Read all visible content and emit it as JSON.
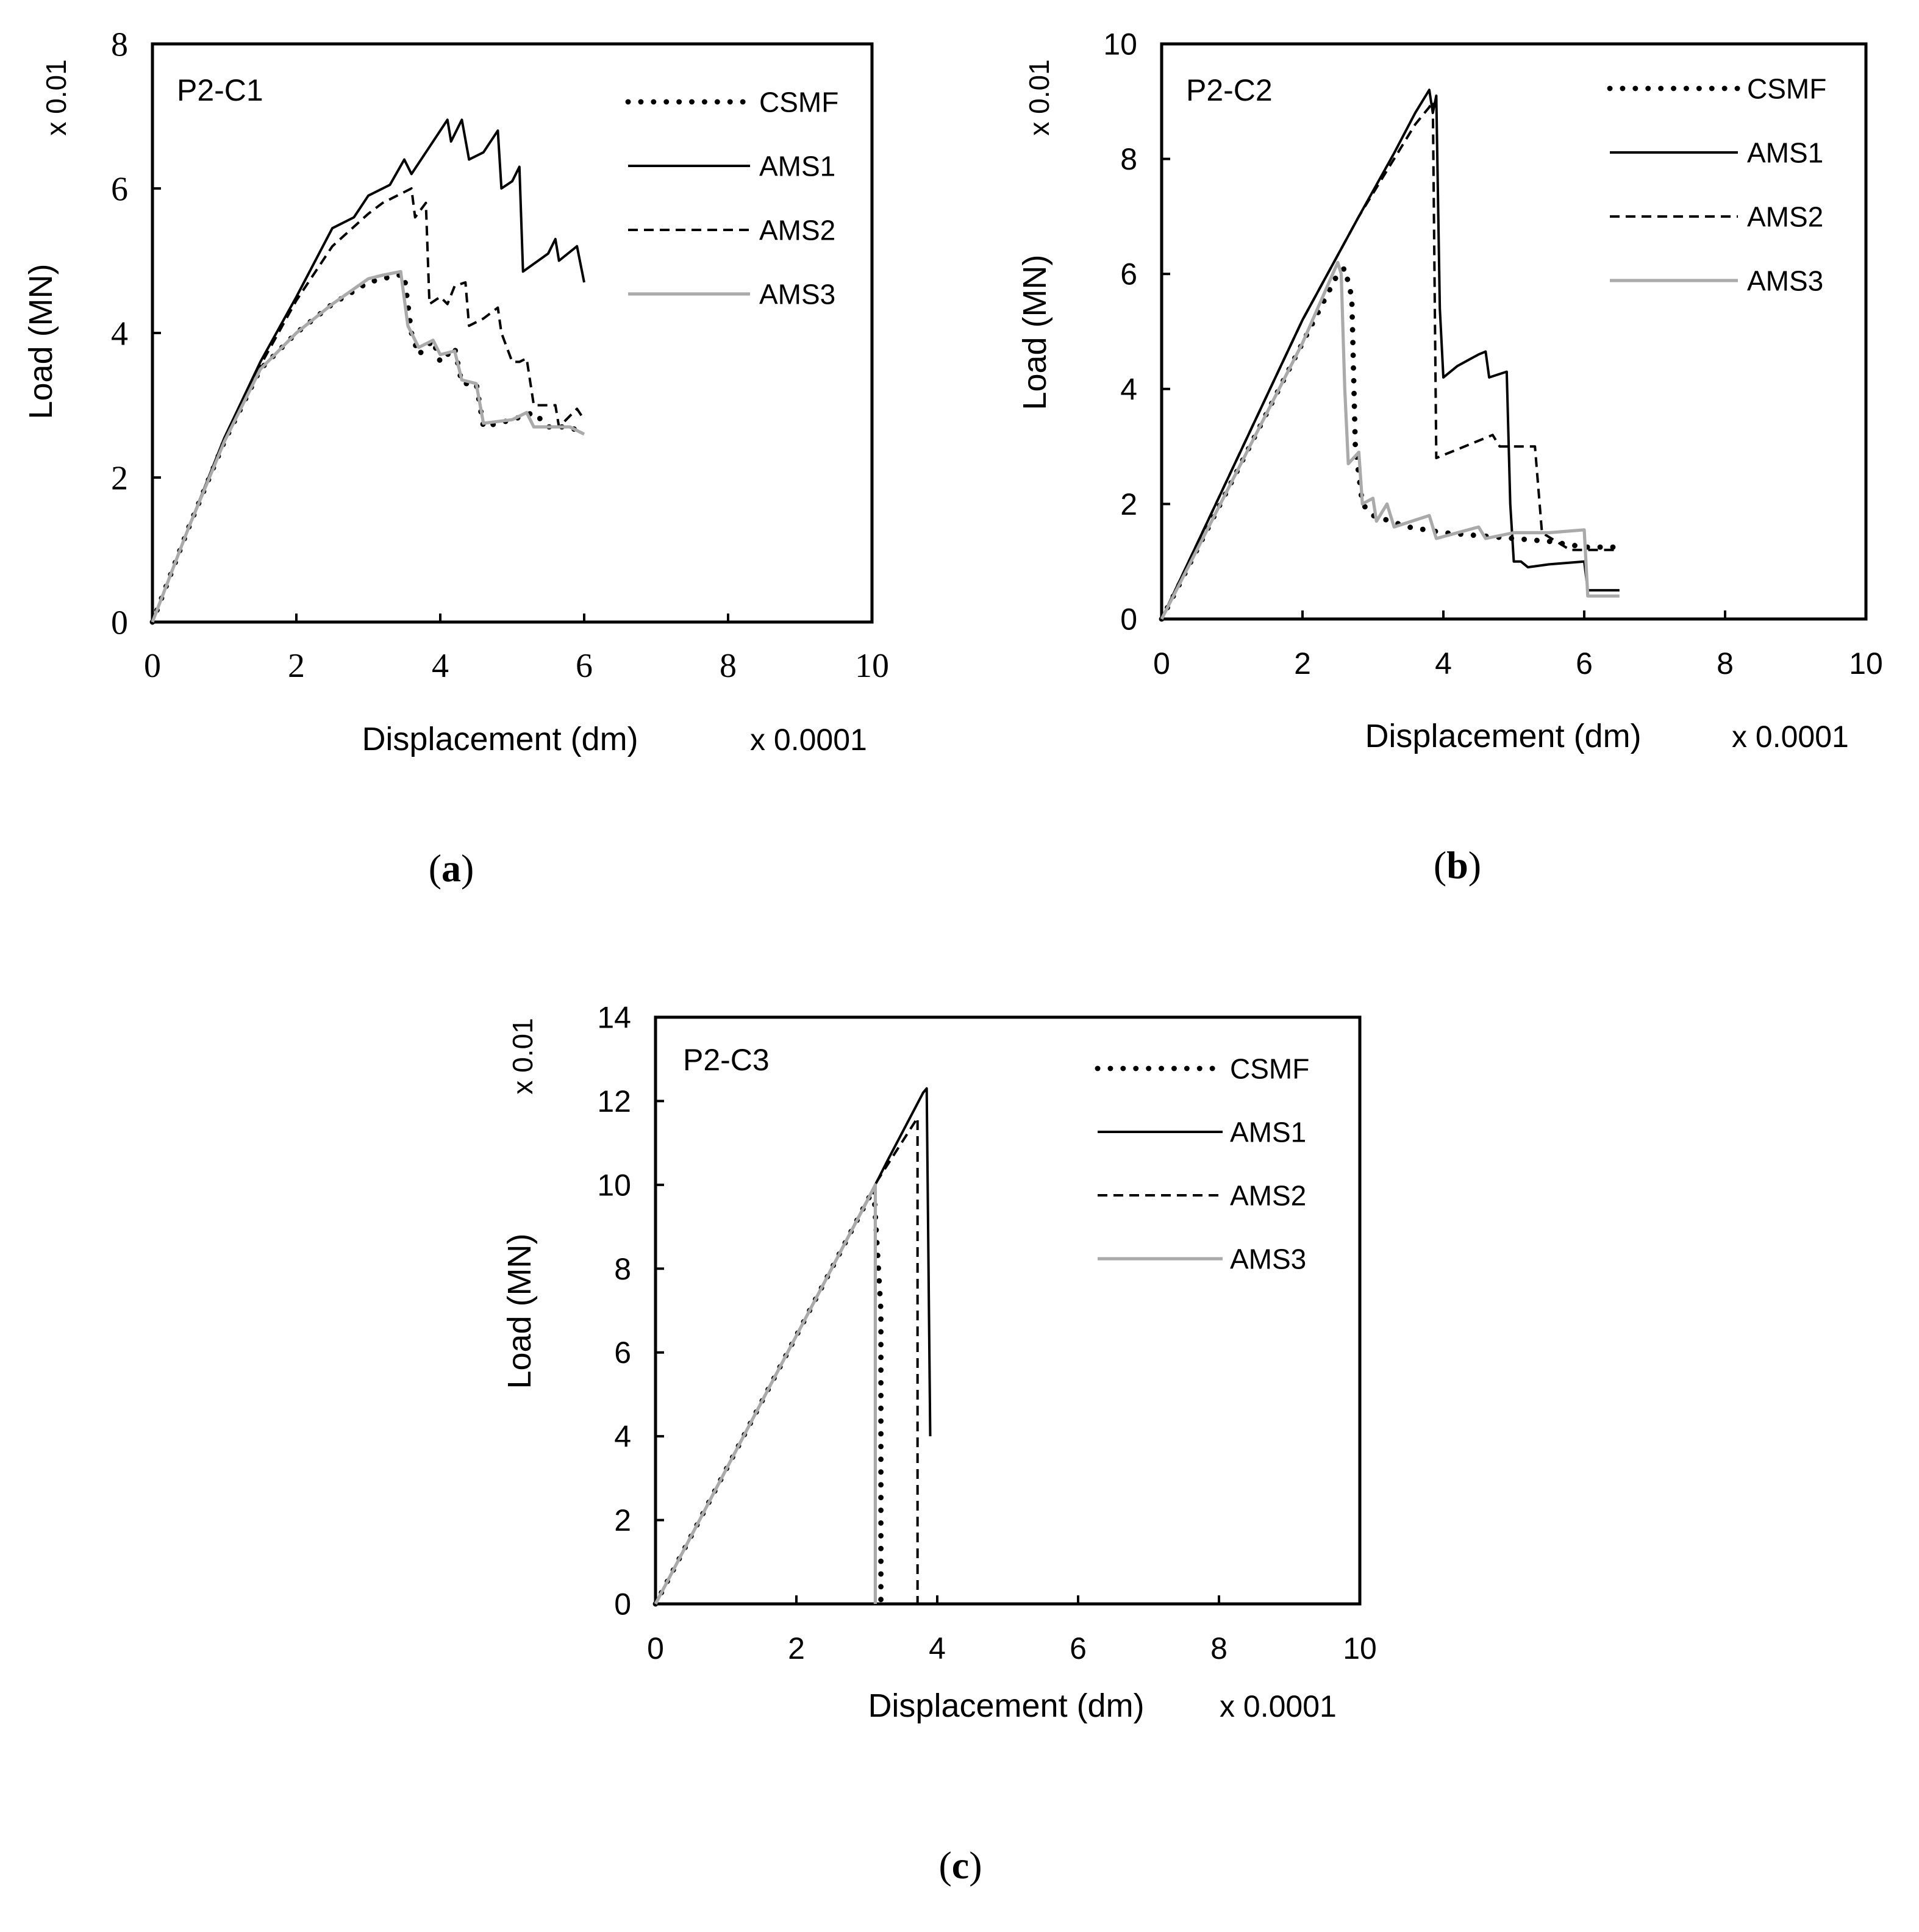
{
  "figure": {
    "panel_labels": [
      "a",
      "b",
      "c"
    ]
  },
  "chart_data": [
    {
      "type": "line",
      "panel": "a",
      "title": "P2-C1",
      "xlabel": "Displacement (dm)",
      "x_multiplier": "x 0.0001",
      "ylabel": "Load  (MN)",
      "y_multiplier": "x 0.01",
      "xlim": [
        0,
        10
      ],
      "ylim": [
        0,
        8
      ],
      "xticks": [
        "0",
        "2",
        "4",
        "6",
        "8",
        "10"
      ],
      "yticks": [
        "0",
        "2",
        "4",
        "6",
        "8"
      ],
      "legend_position": "top-right",
      "series": [
        {
          "name": "CSMF",
          "style": "dotted",
          "color": "#000000",
          "points": [
            [
              0,
              0
            ],
            [
              0.5,
              1.3
            ],
            [
              1.0,
              2.5
            ],
            [
              1.5,
              3.5
            ],
            [
              2.0,
              4.0
            ],
            [
              2.5,
              4.4
            ],
            [
              3.0,
              4.7
            ],
            [
              3.4,
              4.8
            ],
            [
              3.5,
              4.8
            ],
            [
              3.6,
              4.0
            ],
            [
              3.7,
              3.7
            ],
            [
              3.9,
              3.9
            ],
            [
              4.0,
              3.6
            ],
            [
              4.2,
              3.8
            ],
            [
              4.3,
              3.3
            ],
            [
              4.5,
              3.3
            ],
            [
              4.6,
              2.7
            ],
            [
              5.0,
              2.8
            ],
            [
              5.3,
              2.9
            ],
            [
              5.5,
              2.7
            ],
            [
              5.8,
              2.7
            ],
            [
              6.0,
              2.6
            ]
          ]
        },
        {
          "name": "AMS1",
          "style": "solid",
          "color": "#000000",
          "points": [
            [
              0,
              0
            ],
            [
              0.5,
              1.3
            ],
            [
              1.0,
              2.55
            ],
            [
              1.5,
              3.6
            ],
            [
              2.0,
              4.5
            ],
            [
              2.5,
              5.45
            ],
            [
              2.8,
              5.6
            ],
            [
              3.0,
              5.9
            ],
            [
              3.3,
              6.05
            ],
            [
              3.5,
              6.4
            ],
            [
              3.6,
              6.2
            ],
            [
              3.8,
              6.5
            ],
            [
              4.1,
              6.95
            ],
            [
              4.15,
              6.65
            ],
            [
              4.3,
              6.95
            ],
            [
              4.4,
              6.4
            ],
            [
              4.6,
              6.5
            ],
            [
              4.8,
              6.8
            ],
            [
              4.85,
              6.0
            ],
            [
              5.0,
              6.1
            ],
            [
              5.1,
              6.3
            ],
            [
              5.15,
              4.85
            ],
            [
              5.5,
              5.1
            ],
            [
              5.6,
              5.3
            ],
            [
              5.65,
              5.0
            ],
            [
              5.9,
              5.2
            ],
            [
              6.0,
              4.7
            ]
          ]
        },
        {
          "name": "AMS2",
          "style": "dashed",
          "color": "#000000",
          "points": [
            [
              0,
              0
            ],
            [
              0.5,
              1.3
            ],
            [
              1.0,
              2.5
            ],
            [
              1.5,
              3.55
            ],
            [
              2.0,
              4.45
            ],
            [
              2.5,
              5.2
            ],
            [
              3.0,
              5.65
            ],
            [
              3.2,
              5.8
            ],
            [
              3.4,
              5.9
            ],
            [
              3.6,
              6.0
            ],
            [
              3.65,
              5.6
            ],
            [
              3.8,
              5.8
            ],
            [
              3.85,
              4.4
            ],
            [
              4.0,
              4.5
            ],
            [
              4.1,
              4.4
            ],
            [
              4.2,
              4.65
            ],
            [
              4.35,
              4.7
            ],
            [
              4.4,
              4.1
            ],
            [
              4.6,
              4.2
            ],
            [
              4.8,
              4.35
            ],
            [
              4.85,
              4.0
            ],
            [
              5.0,
              3.6
            ],
            [
              5.1,
              3.6
            ],
            [
              5.2,
              3.65
            ],
            [
              5.3,
              3.0
            ],
            [
              5.5,
              3.0
            ],
            [
              5.6,
              3.0
            ],
            [
              5.65,
              2.7
            ],
            [
              5.9,
              2.95
            ],
            [
              6.0,
              2.8
            ]
          ]
        },
        {
          "name": "AMS3",
          "style": "solid",
          "color": "#aaaaaa",
          "points": [
            [
              0,
              0
            ],
            [
              0.5,
              1.3
            ],
            [
              1.0,
              2.5
            ],
            [
              1.5,
              3.5
            ],
            [
              2.0,
              4.0
            ],
            [
              2.5,
              4.4
            ],
            [
              3.0,
              4.75
            ],
            [
              3.2,
              4.8
            ],
            [
              3.45,
              4.85
            ],
            [
              3.55,
              4.1
            ],
            [
              3.7,
              3.8
            ],
            [
              3.9,
              3.9
            ],
            [
              4.0,
              3.7
            ],
            [
              4.2,
              3.75
            ],
            [
              4.3,
              3.35
            ],
            [
              4.5,
              3.3
            ],
            [
              4.6,
              2.75
            ],
            [
              5.0,
              2.8
            ],
            [
              5.2,
              2.9
            ],
            [
              5.3,
              2.7
            ],
            [
              5.8,
              2.7
            ],
            [
              6.0,
              2.6
            ]
          ]
        }
      ]
    },
    {
      "type": "line",
      "panel": "b",
      "title": "P2-C2",
      "xlabel": "Displacement (dm)",
      "x_multiplier": "x 0.0001",
      "ylabel": "Load  (MN)",
      "y_multiplier": "x 0.01",
      "xlim": [
        0,
        10
      ],
      "ylim": [
        0,
        10
      ],
      "xticks": [
        "0",
        "2",
        "4",
        "6",
        "8",
        "10"
      ],
      "yticks": [
        "0",
        "2",
        "4",
        "6",
        "8",
        "10"
      ],
      "legend_position": "top-right",
      "series": [
        {
          "name": "CSMF",
          "style": "dotted",
          "color": "#000000",
          "points": [
            [
              0,
              0
            ],
            [
              0.5,
              1.2
            ],
            [
              1.0,
              2.4
            ],
            [
              1.5,
              3.6
            ],
            [
              2.0,
              4.8
            ],
            [
              2.5,
              6.0
            ],
            [
              2.6,
              6.1
            ],
            [
              2.7,
              5.6
            ],
            [
              2.75,
              3.0
            ],
            [
              2.85,
              2.0
            ],
            [
              3.0,
              1.8
            ],
            [
              3.5,
              1.6
            ],
            [
              4.0,
              1.5
            ],
            [
              4.5,
              1.45
            ],
            [
              5.0,
              1.4
            ],
            [
              5.5,
              1.35
            ],
            [
              6.0,
              1.25
            ],
            [
              6.5,
              1.25
            ]
          ]
        },
        {
          "name": "AMS1",
          "style": "solid",
          "color": "#000000",
          "points": [
            [
              0,
              0
            ],
            [
              1.0,
              2.6
            ],
            [
              2.0,
              5.2
            ],
            [
              2.8,
              7.0
            ],
            [
              3.3,
              8.1
            ],
            [
              3.6,
              8.8
            ],
            [
              3.8,
              9.2
            ],
            [
              3.85,
              8.8
            ],
            [
              3.9,
              9.1
            ],
            [
              3.95,
              5.4
            ],
            [
              4.0,
              4.2
            ],
            [
              4.2,
              4.4
            ],
            [
              4.5,
              4.6
            ],
            [
              4.6,
              4.65
            ],
            [
              4.65,
              4.2
            ],
            [
              4.9,
              4.3
            ],
            [
              4.95,
              2.0
            ],
            [
              5.0,
              1.0
            ],
            [
              5.1,
              1.0
            ],
            [
              5.2,
              0.9
            ],
            [
              5.5,
              0.95
            ],
            [
              6.0,
              1.0
            ],
            [
              6.05,
              0.5
            ],
            [
              6.5,
              0.5
            ]
          ]
        },
        {
          "name": "AMS2",
          "style": "dashed",
          "color": "#000000",
          "points": [
            [
              0,
              0
            ],
            [
              1.0,
              2.6
            ],
            [
              2.0,
              5.2
            ],
            [
              2.8,
              7.0
            ],
            [
              3.3,
              8.0
            ],
            [
              3.6,
              8.6
            ],
            [
              3.8,
              8.9
            ],
            [
              3.85,
              9.0
            ],
            [
              3.9,
              2.8
            ],
            [
              4.3,
              3.0
            ],
            [
              4.6,
              3.15
            ],
            [
              4.7,
              3.2
            ],
            [
              4.8,
              3.0
            ],
            [
              5.3,
              3.0
            ],
            [
              5.4,
              1.5
            ],
            [
              5.8,
              1.2
            ],
            [
              6.5,
              1.2
            ]
          ]
        },
        {
          "name": "AMS3",
          "style": "solid",
          "color": "#aaaaaa",
          "points": [
            [
              0,
              0
            ],
            [
              0.5,
              1.2
            ],
            [
              1.0,
              2.4
            ],
            [
              1.5,
              3.6
            ],
            [
              2.0,
              4.8
            ],
            [
              2.5,
              6.2
            ],
            [
              2.55,
              6.0
            ],
            [
              2.6,
              4.0
            ],
            [
              2.65,
              2.7
            ],
            [
              2.8,
              2.9
            ],
            [
              2.85,
              2.0
            ],
            [
              3.0,
              2.1
            ],
            [
              3.05,
              1.7
            ],
            [
              3.2,
              2.0
            ],
            [
              3.3,
              1.6
            ],
            [
              3.8,
              1.8
            ],
            [
              3.9,
              1.4
            ],
            [
              4.5,
              1.6
            ],
            [
              4.6,
              1.4
            ],
            [
              5.0,
              1.5
            ],
            [
              5.5,
              1.5
            ],
            [
              6.0,
              1.55
            ],
            [
              6.05,
              0.4
            ],
            [
              6.5,
              0.4
            ]
          ]
        }
      ]
    },
    {
      "type": "line",
      "panel": "c",
      "title": "P2-C3",
      "xlabel": "Displacement (dm)",
      "x_multiplier": "x 0.0001",
      "ylabel": "Load  (MN)",
      "y_multiplier": "x 0.01",
      "xlim": [
        0,
        10
      ],
      "ylim": [
        0,
        14
      ],
      "xticks": [
        "0",
        "2",
        "4",
        "6",
        "8",
        "10"
      ],
      "yticks": [
        "0",
        "2",
        "4",
        "6",
        "8",
        "10",
        "12",
        "14"
      ],
      "legend_position": "top-right",
      "series": [
        {
          "name": "CSMF",
          "style": "dotted",
          "color": "#000000",
          "points": [
            [
              0,
              0
            ],
            [
              1.0,
              3.2
            ],
            [
              2.0,
              6.4
            ],
            [
              3.0,
              9.6
            ],
            [
              3.1,
              9.9
            ],
            [
              3.2,
              7.0
            ],
            [
              3.2,
              0
            ]
          ]
        },
        {
          "name": "AMS1",
          "style": "solid",
          "color": "#000000",
          "points": [
            [
              0,
              0
            ],
            [
              1.0,
              3.2
            ],
            [
              2.0,
              6.4
            ],
            [
              3.15,
              10.1
            ],
            [
              3.3,
              10.6
            ],
            [
              3.8,
              12.2
            ],
            [
              3.85,
              12.3
            ],
            [
              3.9,
              4.0
            ]
          ]
        },
        {
          "name": "AMS2",
          "style": "dashed",
          "color": "#000000",
          "points": [
            [
              0,
              0
            ],
            [
              1.0,
              3.2
            ],
            [
              2.0,
              6.4
            ],
            [
              3.15,
              10.1
            ],
            [
              3.72,
              11.6
            ],
            [
              3.72,
              0
            ]
          ]
        },
        {
          "name": "AMS3",
          "style": "solid",
          "color": "#aaaaaa",
          "points": [
            [
              0,
              0
            ],
            [
              1.0,
              3.2
            ],
            [
              2.0,
              6.4
            ],
            [
              3.0,
              9.6
            ],
            [
              3.12,
              10.0
            ],
            [
              3.12,
              0
            ]
          ]
        }
      ]
    }
  ]
}
